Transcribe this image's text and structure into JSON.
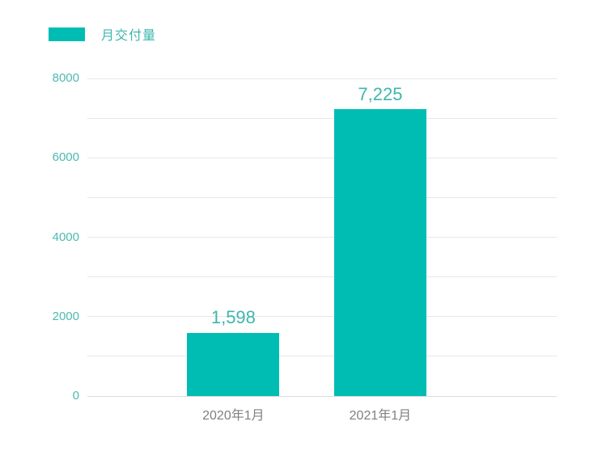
{
  "legend": {
    "label": "月交付量"
  },
  "chart_data": {
    "type": "bar",
    "title": "",
    "series_name": "月交付量",
    "categories": [
      "2020年1月",
      "2021年1月"
    ],
    "values": [
      1598,
      7225
    ],
    "value_labels": [
      "1,598",
      "7,225"
    ],
    "xlabel": "",
    "ylabel": "",
    "ylim": [
      0,
      8000
    ],
    "yticks_labeled": [
      "0",
      "2000",
      "4000",
      "6000",
      "8000"
    ],
    "gridline_step": 1000,
    "grid": true,
    "legend_position": "top-left",
    "colors": {
      "bar": "#00bdb4",
      "tick_label": "#4db9b0",
      "value_label": "#3fb6ac",
      "x_label": "#808080",
      "gridline": "#e7e7e7",
      "baseline": "#dcdcdc",
      "background": "#ffffff"
    }
  }
}
